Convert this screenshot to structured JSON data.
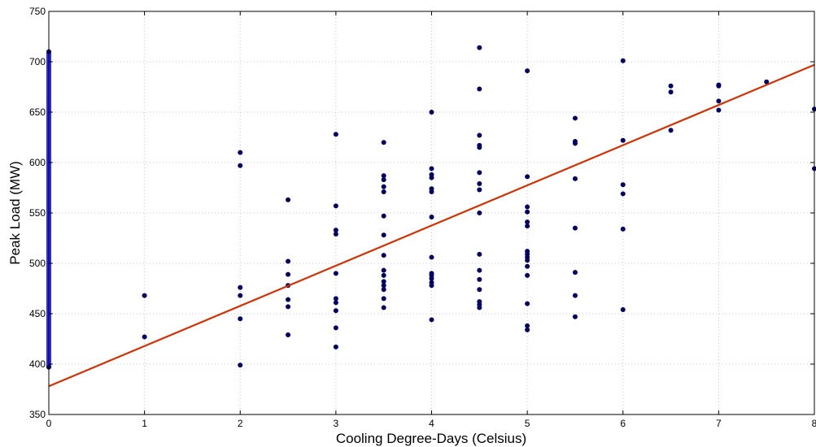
{
  "chart_data": {
    "type": "scatter",
    "xlabel": "Cooling Degree-Days (Celsius)",
    "ylabel": "Peak Load (MW)",
    "xlim": [
      0,
      8
    ],
    "ylim": [
      350,
      750
    ],
    "grid": true,
    "x_ticks": [
      "0",
      "1",
      "2",
      "3",
      "4",
      "5",
      "6",
      "7",
      "8"
    ],
    "y_ticks": [
      "350",
      "400",
      "450",
      "500",
      "550",
      "600",
      "650",
      "700",
      "750"
    ],
    "colors": {
      "points": "#000066",
      "zero_cluster": "#2a2aff",
      "fit_line": "#d62f00",
      "grid": "#b8b8b8"
    },
    "series": [
      {
        "type": "scatter",
        "points": [
          [
            1,
            468
          ],
          [
            1,
            427
          ],
          [
            2,
            610
          ],
          [
            2,
            597
          ],
          [
            2,
            476
          ],
          [
            2,
            468
          ],
          [
            2,
            445
          ],
          [
            2,
            399
          ],
          [
            2.5,
            563
          ],
          [
            2.5,
            502
          ],
          [
            2.5,
            489
          ],
          [
            2.5,
            478
          ],
          [
            2.5,
            464
          ],
          [
            2.5,
            457
          ],
          [
            2.5,
            429
          ],
          [
            3,
            628
          ],
          [
            3,
            557
          ],
          [
            3,
            533
          ],
          [
            3,
            529
          ],
          [
            3,
            490
          ],
          [
            3,
            465
          ],
          [
            3,
            461
          ],
          [
            3,
            453
          ],
          [
            3,
            436
          ],
          [
            3,
            417
          ],
          [
            3.5,
            620
          ],
          [
            3.5,
            587
          ],
          [
            3.5,
            583
          ],
          [
            3.5,
            576
          ],
          [
            3.5,
            571
          ],
          [
            3.5,
            547
          ],
          [
            3.5,
            528
          ],
          [
            3.5,
            508
          ],
          [
            3.5,
            493
          ],
          [
            3.5,
            488
          ],
          [
            3.5,
            482
          ],
          [
            3.5,
            478
          ],
          [
            3.5,
            474
          ],
          [
            3.5,
            465
          ],
          [
            3.5,
            456
          ],
          [
            4,
            650
          ],
          [
            4,
            594
          ],
          [
            4,
            588
          ],
          [
            4,
            585
          ],
          [
            4,
            574
          ],
          [
            4,
            571
          ],
          [
            4,
            546
          ],
          [
            4,
            506
          ],
          [
            4,
            490
          ],
          [
            4,
            488
          ],
          [
            4,
            485
          ],
          [
            4,
            481
          ],
          [
            4,
            478
          ],
          [
            4,
            444
          ],
          [
            4.5,
            714
          ],
          [
            4.5,
            673
          ],
          [
            4.5,
            627
          ],
          [
            4.5,
            617
          ],
          [
            4.5,
            615
          ],
          [
            4.5,
            590
          ],
          [
            4.5,
            579
          ],
          [
            4.5,
            573
          ],
          [
            4.5,
            550
          ],
          [
            4.5,
            509
          ],
          [
            4.5,
            493
          ],
          [
            4.5,
            484
          ],
          [
            4.5,
            474
          ],
          [
            4.5,
            462
          ],
          [
            4.5,
            459
          ],
          [
            4.5,
            456
          ],
          [
            5,
            691
          ],
          [
            5,
            586
          ],
          [
            5,
            556
          ],
          [
            5,
            551
          ],
          [
            5,
            541
          ],
          [
            5,
            537
          ],
          [
            5,
            512
          ],
          [
            5,
            509
          ],
          [
            5,
            506
          ],
          [
            5,
            503
          ],
          [
            5,
            497
          ],
          [
            5,
            488
          ],
          [
            5,
            460
          ],
          [
            5,
            438
          ],
          [
            5,
            434
          ],
          [
            5.5,
            644
          ],
          [
            5.5,
            621
          ],
          [
            5.5,
            619
          ],
          [
            5.5,
            584
          ],
          [
            5.5,
            535
          ],
          [
            5.5,
            491
          ],
          [
            5.5,
            468
          ],
          [
            5.5,
            447
          ],
          [
            6,
            701
          ],
          [
            6,
            622
          ],
          [
            6,
            578
          ],
          [
            6,
            569
          ],
          [
            6,
            534
          ],
          [
            6,
            454
          ],
          [
            6.5,
            676
          ],
          [
            6.5,
            670
          ],
          [
            6.5,
            632
          ],
          [
            7,
            677
          ],
          [
            7,
            676
          ],
          [
            7,
            661
          ],
          [
            7,
            652
          ],
          [
            7.5,
            680
          ],
          [
            8,
            653
          ],
          [
            8,
            594
          ]
        ]
      },
      {
        "type": "scatter",
        "x": 0,
        "y_range": [
          397,
          710
        ]
      },
      {
        "type": "line",
        "x": [
          0,
          8
        ],
        "y": [
          378,
          697
        ]
      }
    ]
  }
}
